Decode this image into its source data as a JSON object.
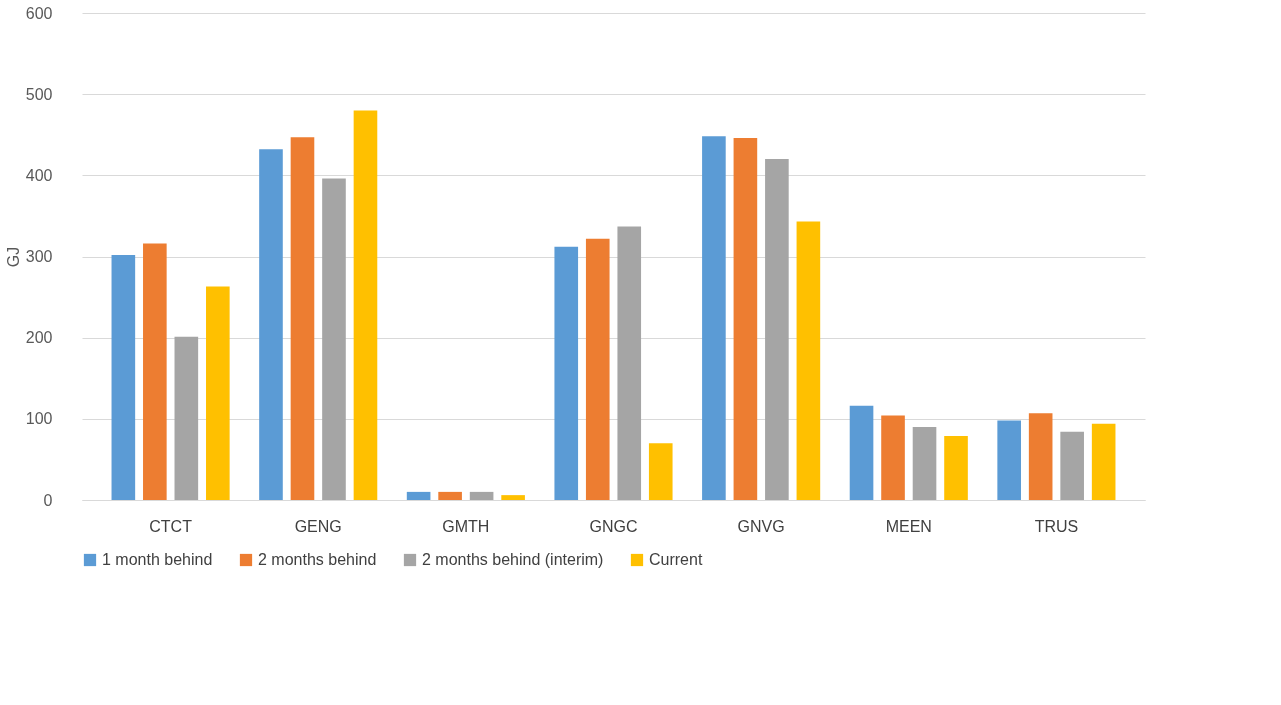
{
  "chart_data": {
    "type": "bar",
    "ylabel": "GJ",
    "categories": [
      "CTCT",
      "GENG",
      "GMTH",
      "GNGC",
      "GNVG",
      "MEEN",
      "TRUS"
    ],
    "series": [
      {
        "name": "1 month behind",
        "color": "#5b9bd5",
        "values": [
          302,
          432,
          10,
          312,
          448,
          116,
          98
        ]
      },
      {
        "name": "2 months behind",
        "color": "#ed7d31",
        "values": [
          316,
          447,
          10,
          322,
          446,
          104,
          107
        ]
      },
      {
        "name": "2 months behind (interim)",
        "color": "#a5a5a5",
        "values": [
          201,
          396,
          10,
          337,
          420,
          90,
          84
        ]
      },
      {
        "name": "Current",
        "color": "#ffc000",
        "values": [
          263,
          480,
          6,
          70,
          343,
          79,
          94
        ]
      }
    ],
    "ylim": [
      0,
      600
    ],
    "yticks": [
      0,
      100,
      200,
      300,
      400,
      500,
      600
    ],
    "grid": "y",
    "legend": "bottom"
  }
}
